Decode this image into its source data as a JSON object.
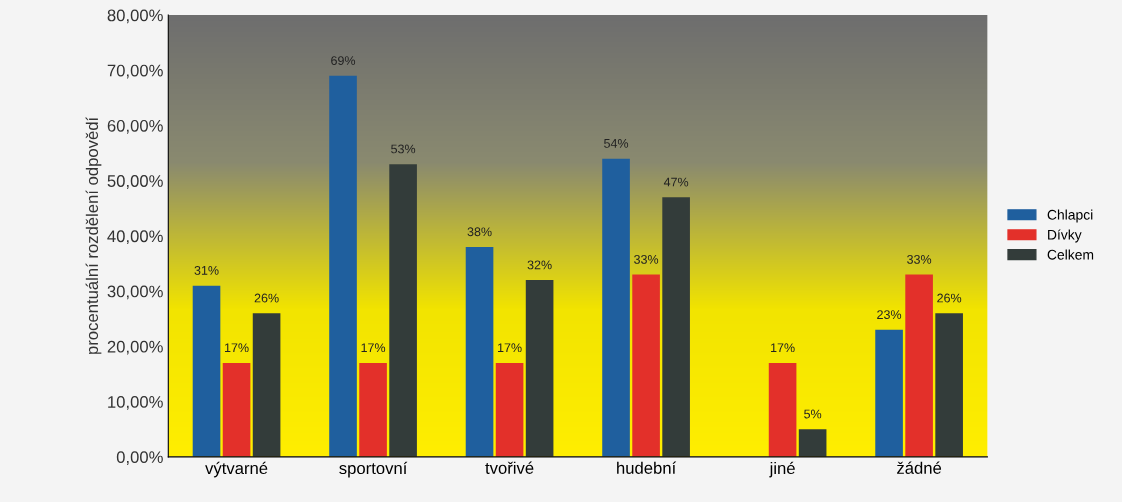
{
  "chart_data": {
    "type": "bar",
    "ylabel": "procentuální rozdělení odpovědí",
    "categories": [
      "výtvarné",
      "sportovní",
      "tvořivé",
      "hudební",
      "jiné",
      "žádné"
    ],
    "series": [
      {
        "name": "Chlapci",
        "color": "#1f5f9e",
        "values": [
          31,
          69,
          38,
          54,
          null,
          23
        ],
        "value_labels": [
          "31%",
          "69%",
          "38%",
          "54%",
          null,
          "23%"
        ]
      },
      {
        "name": "Dívky",
        "color": "#e3302a",
        "values": [
          17,
          17,
          17,
          33,
          17,
          33
        ],
        "value_labels": [
          "17%",
          "17%",
          "17%",
          "33%",
          "17%",
          "33%"
        ]
      },
      {
        "name": "Celkem",
        "color": "#333c3a",
        "values": [
          26,
          53,
          32,
          47,
          5,
          26
        ],
        "value_labels": [
          "26%",
          "53%",
          "32%",
          "47%",
          "5%",
          "26%"
        ]
      }
    ],
    "ylim": [
      0,
      80
    ],
    "yticks": [
      {
        "value": 0,
        "label": "0,00%"
      },
      {
        "value": 10,
        "label": "10,00%"
      },
      {
        "value": 20,
        "label": "20,00%"
      },
      {
        "value": 30,
        "label": "30,00%"
      },
      {
        "value": 40,
        "label": "40,00%"
      },
      {
        "value": 50,
        "label": "50,00%"
      },
      {
        "value": 60,
        "label": "60,00%"
      },
      {
        "value": 70,
        "label": "70,00%"
      },
      {
        "value": 80,
        "label": "80,00%"
      }
    ],
    "grid": false,
    "legend": "right"
  }
}
